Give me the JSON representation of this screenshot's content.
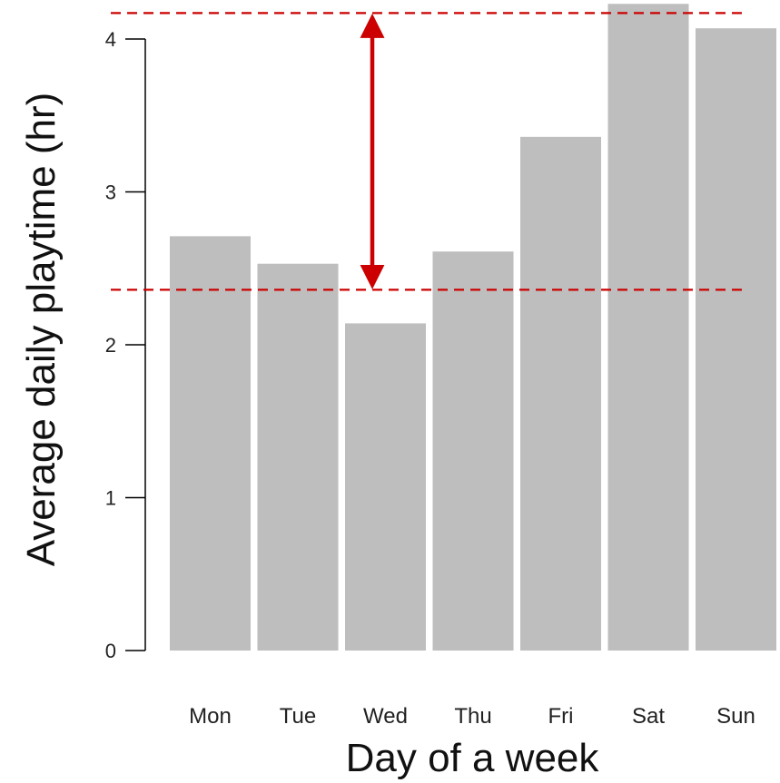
{
  "chart_data": {
    "type": "bar",
    "categories": [
      "Mon",
      "Tue",
      "Wed",
      "Thu",
      "Fri",
      "Sat",
      "Sun"
    ],
    "values": [
      2.71,
      2.53,
      2.14,
      2.61,
      3.36,
      4.23,
      4.07
    ],
    "xlabel": "Day of a week",
    "ylabel": "Average daily playtime (hr)",
    "ylim": [
      0,
      4.25
    ],
    "yticks": [
      0,
      1,
      2,
      3,
      4
    ],
    "grid": false,
    "legend": "none",
    "annotations": {
      "reference_lines": [
        2.36,
        4.17
      ],
      "arrow_between": [
        2.36,
        4.17
      ]
    },
    "colors": {
      "bar": "#bebebe",
      "annotation": "#cc0000",
      "axis": "#000000"
    }
  }
}
